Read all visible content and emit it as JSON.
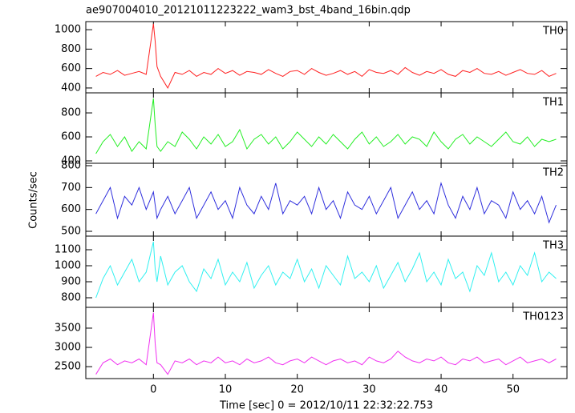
{
  "chart_data": [
    {
      "type": "line",
      "title": "ae907004010_20121011223222_wam3_bst_4band_16bin.qdp",
      "xlim": [
        -9.4,
        57.5
      ],
      "ylim": [
        350,
        1083
      ],
      "yticks": [
        400,
        600,
        800,
        1000
      ],
      "x": [
        -8,
        -7,
        -6,
        -5,
        -4,
        -3,
        -2,
        -1,
        0,
        0.25,
        0.5,
        1,
        2,
        3,
        4,
        5,
        6,
        7,
        8,
        9,
        10,
        11,
        12,
        13,
        14,
        15,
        16,
        17,
        18,
        19,
        20,
        21,
        22,
        23,
        24,
        25,
        26,
        27,
        28,
        29,
        30,
        31,
        32,
        33,
        34,
        35,
        36,
        37,
        38,
        39,
        40,
        41,
        42,
        43,
        44,
        45,
        46,
        47,
        48,
        49,
        50,
        51,
        52,
        53,
        54,
        55,
        56
      ],
      "series": [
        {
          "name": "TH0",
          "color": "#ff2020",
          "values": [
            520,
            560,
            540,
            580,
            530,
            550,
            570,
            540,
            1060,
            880,
            620,
            520,
            400,
            560,
            540,
            580,
            520,
            560,
            540,
            600,
            550,
            580,
            530,
            570,
            560,
            540,
            590,
            550,
            520,
            570,
            580,
            540,
            600,
            560,
            530,
            550,
            580,
            540,
            570,
            520,
            590,
            560,
            550,
            580,
            540,
            610,
            560,
            530,
            570,
            550,
            590,
            540,
            520,
            580,
            560,
            600,
            550,
            540,
            570,
            530,
            560,
            590,
            550,
            540,
            580,
            520,
            550
          ]
        }
      ]
    },
    {
      "type": "line",
      "xlim": [
        -9.4,
        57.5
      ],
      "ylim": [
        380,
        967
      ],
      "yticks": [
        400,
        600,
        800
      ],
      "x": [
        -8,
        -7,
        -6,
        -5,
        -4,
        -3,
        -2,
        -1,
        0,
        0.25,
        0.5,
        1,
        2,
        3,
        4,
        5,
        6,
        7,
        8,
        9,
        10,
        11,
        12,
        13,
        14,
        15,
        16,
        17,
        18,
        19,
        20,
        21,
        22,
        23,
        24,
        25,
        26,
        27,
        28,
        29,
        30,
        31,
        32,
        33,
        34,
        35,
        36,
        37,
        38,
        39,
        40,
        41,
        42,
        43,
        44,
        45,
        46,
        47,
        48,
        49,
        50,
        51,
        52,
        53,
        54,
        55,
        56
      ],
      "series": [
        {
          "name": "TH1",
          "color": "#22ee22",
          "values": [
            460,
            560,
            620,
            520,
            600,
            480,
            560,
            500,
            920,
            700,
            520,
            480,
            560,
            520,
            640,
            580,
            500,
            600,
            540,
            620,
            520,
            560,
            660,
            500,
            580,
            620,
            540,
            600,
            500,
            560,
            640,
            580,
            520,
            600,
            540,
            620,
            560,
            500,
            580,
            640,
            540,
            600,
            520,
            560,
            620,
            540,
            600,
            580,
            520,
            640,
            560,
            500,
            580,
            620,
            540,
            600,
            560,
            520,
            580,
            640,
            560,
            540,
            600,
            520,
            580,
            560,
            580
          ]
        }
      ]
    },
    {
      "type": "line",
      "ylabel": "Counts/sec",
      "xlim": [
        -9.4,
        57.5
      ],
      "ylim": [
        478,
        811
      ],
      "yticks": [
        500,
        600,
        700,
        800
      ],
      "x": [
        -8,
        -7,
        -6,
        -5,
        -4,
        -3,
        -2,
        -1,
        0,
        0.25,
        0.5,
        1,
        2,
        3,
        4,
        5,
        6,
        7,
        8,
        9,
        10,
        11,
        12,
        13,
        14,
        15,
        16,
        17,
        18,
        19,
        20,
        21,
        22,
        23,
        24,
        25,
        26,
        27,
        28,
        29,
        30,
        31,
        32,
        33,
        34,
        35,
        36,
        37,
        38,
        39,
        40,
        41,
        42,
        43,
        44,
        45,
        46,
        47,
        48,
        49,
        50,
        51,
        52,
        53,
        54,
        55,
        56
      ],
      "series": [
        {
          "name": "TH2",
          "color": "#3030dd",
          "values": [
            580,
            640,
            700,
            560,
            660,
            620,
            700,
            600,
            680,
            620,
            560,
            600,
            660,
            580,
            640,
            700,
            560,
            620,
            680,
            600,
            640,
            560,
            700,
            620,
            580,
            660,
            600,
            720,
            580,
            640,
            620,
            660,
            580,
            700,
            600,
            640,
            560,
            680,
            620,
            600,
            660,
            580,
            640,
            700,
            560,
            620,
            680,
            600,
            640,
            580,
            720,
            620,
            560,
            660,
            600,
            700,
            580,
            640,
            620,
            560,
            680,
            600,
            640,
            580,
            660,
            540,
            620
          ]
        }
      ]
    },
    {
      "type": "line",
      "xlim": [
        -9.4,
        57.5
      ],
      "ylim": [
        740,
        1185
      ],
      "yticks": [
        800,
        900,
        1000,
        1100
      ],
      "x": [
        -8,
        -7,
        -6,
        -5,
        -4,
        -3,
        -2,
        -1,
        0,
        0.25,
        0.5,
        1,
        2,
        3,
        4,
        5,
        6,
        7,
        8,
        9,
        10,
        11,
        12,
        13,
        14,
        15,
        16,
        17,
        18,
        19,
        20,
        21,
        22,
        23,
        24,
        25,
        26,
        27,
        28,
        29,
        30,
        31,
        32,
        33,
        34,
        35,
        36,
        37,
        38,
        39,
        40,
        41,
        42,
        43,
        44,
        45,
        46,
        47,
        48,
        49,
        50,
        51,
        52,
        53,
        54,
        55,
        56
      ],
      "series": [
        {
          "name": "TH3",
          "color": "#30f0f0",
          "values": [
            800,
            920,
            1000,
            880,
            960,
            1040,
            900,
            960,
            1150,
            980,
            900,
            1060,
            880,
            960,
            1000,
            900,
            840,
            980,
            920,
            1040,
            880,
            960,
            900,
            1020,
            860,
            940,
            1000,
            880,
            960,
            920,
            1040,
            900,
            980,
            860,
            1000,
            940,
            880,
            1060,
            920,
            960,
            900,
            1000,
            860,
            940,
            1020,
            900,
            980,
            1080,
            900,
            960,
            880,
            1040,
            920,
            960,
            840,
            1000,
            940,
            1080,
            900,
            960,
            880,
            1000,
            940,
            1080,
            900,
            960,
            920
          ]
        }
      ]
    },
    {
      "type": "line",
      "xlabel": "Time [sec] 0 = 2012/10/11 22:32:22.753",
      "xlim": [
        -9.4,
        57.5
      ],
      "xticks": [
        0,
        10,
        20,
        30,
        40,
        50
      ],
      "ylim": [
        2190,
        4040
      ],
      "yticks": [
        2500,
        3000,
        3500
      ],
      "x": [
        -8,
        -7,
        -6,
        -5,
        -4,
        -3,
        -2,
        -1,
        0,
        0.25,
        0.5,
        1,
        2,
        3,
        4,
        5,
        6,
        7,
        8,
        9,
        10,
        11,
        12,
        13,
        14,
        15,
        16,
        17,
        18,
        19,
        20,
        21,
        22,
        23,
        24,
        25,
        26,
        27,
        28,
        29,
        30,
        31,
        32,
        33,
        34,
        35,
        36,
        37,
        38,
        39,
        40,
        41,
        42,
        43,
        44,
        45,
        46,
        47,
        48,
        49,
        50,
        51,
        52,
        53,
        54,
        55,
        56
      ],
      "series": [
        {
          "name": "TH0123",
          "color": "#f030f0",
          "values": [
            2300,
            2600,
            2700,
            2550,
            2650,
            2600,
            2700,
            2550,
            3900,
            3100,
            2600,
            2550,
            2300,
            2650,
            2600,
            2700,
            2550,
            2650,
            2600,
            2750,
            2600,
            2650,
            2550,
            2700,
            2600,
            2650,
            2750,
            2600,
            2550,
            2650,
            2700,
            2600,
            2750,
            2650,
            2550,
            2650,
            2700,
            2600,
            2650,
            2550,
            2750,
            2650,
            2600,
            2700,
            2900,
            2750,
            2650,
            2600,
            2700,
            2650,
            2750,
            2600,
            2550,
            2700,
            2650,
            2750,
            2600,
            2650,
            2700,
            2550,
            2650,
            2750,
            2600,
            2650,
            2700,
            2600,
            2700
          ]
        }
      ]
    }
  ]
}
